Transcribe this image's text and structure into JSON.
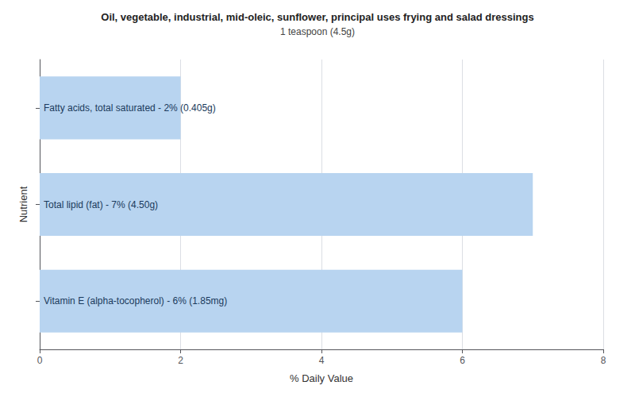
{
  "chart_data": {
    "type": "bar",
    "orientation": "horizontal",
    "title": "Oil, vegetable, industrial, mid-oleic, sunflower, principal uses frying and salad dressings",
    "subtitle": "1 teaspoon (4.5g)",
    "xlabel": "% Daily Value",
    "ylabel": "Nutrient",
    "categories": [
      "Fatty acids, total saturated - 2% (0.405g)",
      "Total lipid (fat) - 7% (4.50g)",
      "Vitamin E (alpha-tocopherol) - 6% (1.85mg)"
    ],
    "values": [
      2,
      7,
      6
    ],
    "color": "#b8d4f0",
    "xlim": [
      0,
      8
    ],
    "xticks": [
      0,
      2,
      4,
      6,
      8
    ],
    "grid": true,
    "tick_labels": "x"
  }
}
